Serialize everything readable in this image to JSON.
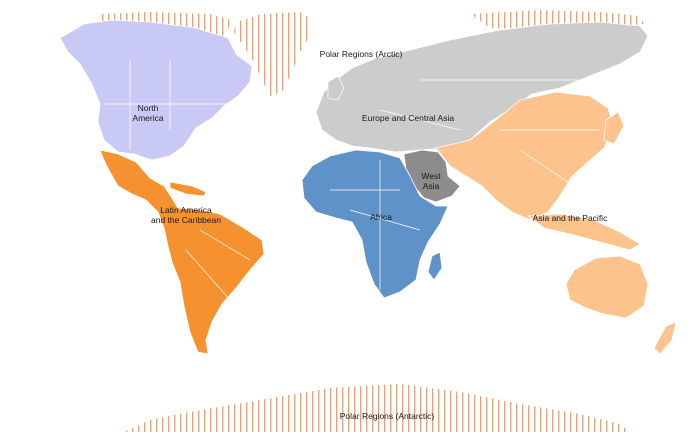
{
  "map": {
    "regions": [
      {
        "id": "north-america",
        "label_lines": [
          "North",
          "America"
        ],
        "color": "#c9c9f5"
      },
      {
        "id": "latin-america",
        "label_lines": [
          "Latin America",
          "and the Caribbean"
        ],
        "color": "#f5922f"
      },
      {
        "id": "europe-central-asia",
        "label_lines": [
          "Europe and Central Asia"
        ],
        "color": "#cccccc"
      },
      {
        "id": "west-asia",
        "label_lines": [
          "West",
          "Asia"
        ],
        "color": "#8c8c8c"
      },
      {
        "id": "africa",
        "label_lines": [
          "Africa"
        ],
        "color": "#5f92c8"
      },
      {
        "id": "asia-pacific",
        "label_lines": [
          "Asia and the Pacific"
        ],
        "color": "#fcc38d"
      },
      {
        "id": "polar-arctic",
        "label_lines": [
          "Polar Regions (Arctic)"
        ],
        "color": "#f2a36a"
      },
      {
        "id": "polar-antarctic",
        "label_lines": [
          "Polar Regions (Antarctic)"
        ],
        "color": "#f2a36a"
      }
    ]
  }
}
